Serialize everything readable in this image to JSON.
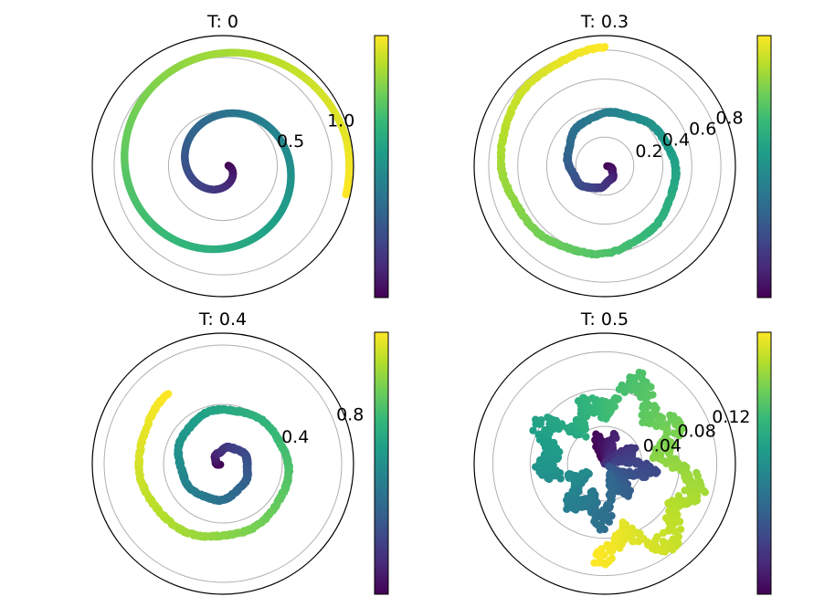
{
  "chart_data": [
    {
      "type": "scatter",
      "projection": "polar",
      "title": "T: 0",
      "rmax": 1.2,
      "rticks": [
        0.5,
        1.0
      ],
      "rtick_labels": [
        "0.5",
        "1.0"
      ],
      "grid": true,
      "colorbar": {
        "colormap": "viridis",
        "ticks": []
      },
      "spiral": {
        "r_start": 0.05,
        "r_end": 1.2,
        "turns": 2.05,
        "theta_start_deg": 5,
        "noise": 0.0,
        "clamp": 1.16
      }
    },
    {
      "type": "scatter",
      "projection": "polar",
      "title": "T: 0.3",
      "rmax": 0.9,
      "rticks": [
        0.2,
        0.4,
        0.6,
        0.8
      ],
      "rtick_labels": [
        "0.2",
        "0.4",
        "0.6",
        "0.8"
      ],
      "grid": true,
      "colorbar": {
        "colormap": "viridis",
        "ticks": []
      },
      "spiral": {
        "r_start": 0.02,
        "r_end": 0.82,
        "turns": 1.75,
        "theta_start_deg": 0,
        "noise": 0.012,
        "clamp": 0
      }
    },
    {
      "type": "scatter",
      "projection": "polar",
      "title": "T: 0.4",
      "rmax": 0.88,
      "rticks": [
        0.4,
        0.8
      ],
      "rtick_labels": [
        "0.4",
        "0.8"
      ],
      "grid": true,
      "colorbar": {
        "colormap": "viridis",
        "ticks": []
      },
      "spiral": {
        "r_start": 0.02,
        "r_end": 0.6,
        "turns": 2.2,
        "theta_start_deg": 200,
        "noise": 0.012,
        "clamp": 0
      }
    },
    {
      "type": "scatter",
      "projection": "polar",
      "title": "T: 0.5",
      "rmax": 0.14,
      "rticks": [
        0.04,
        0.08,
        0.12
      ],
      "rtick_labels": [
        "0.04",
        "0.08",
        "0.12"
      ],
      "grid": true,
      "colorbar": {
        "colormap": "viridis",
        "ticks": []
      },
      "spiral": {
        "r_start": 0.005,
        "r_end": 0.1,
        "turns": 1.6,
        "theta_start_deg": 120,
        "noise": 0.022,
        "clamp": 0
      }
    }
  ]
}
